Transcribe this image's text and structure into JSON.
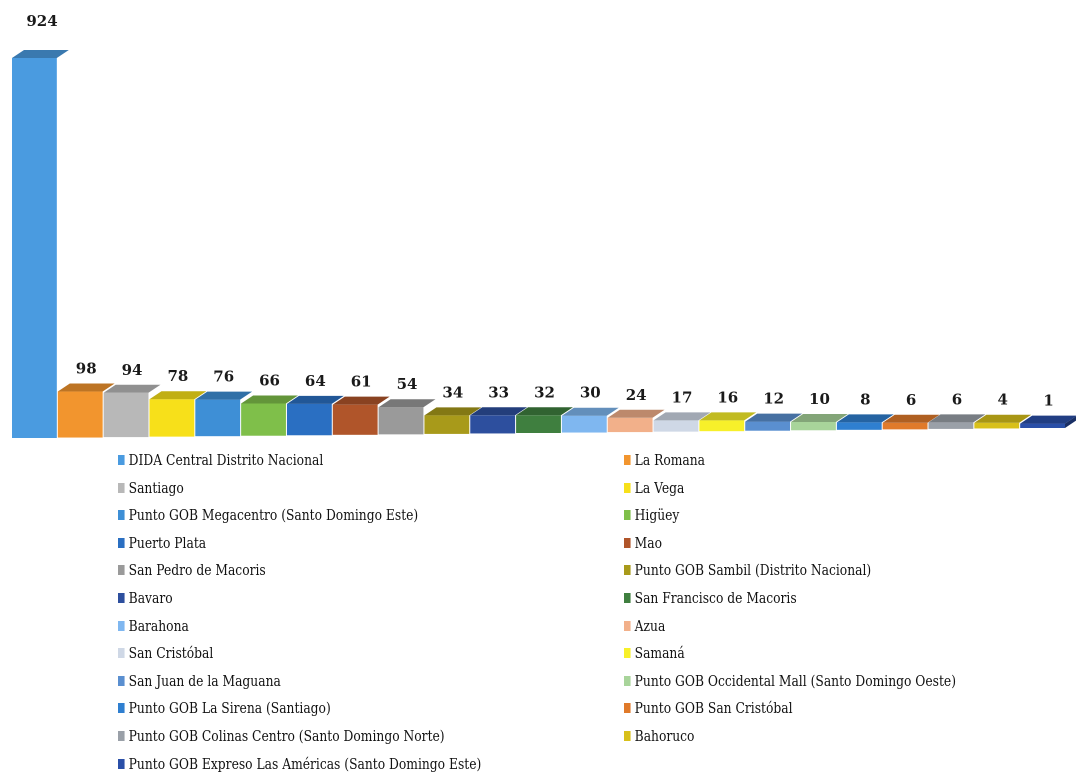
{
  "chart_data": {
    "type": "bar",
    "categories": [
      "DIDA Central Distrito Nacional",
      "La Romana",
      "Santiago",
      "La Vega",
      "Punto GOB Megacentro (Santo Domingo Este)",
      "Higüey",
      "Puerto Plata",
      "Mao",
      "San Pedro de Macoris",
      "Punto GOB Sambil (Distrito Nacional)",
      "Bavaro",
      "San Francisco de Macoris",
      "Barahona",
      "Azua",
      "San Cristóbal",
      "Samaná",
      "San Juan de la Maguana",
      "Punto GOB Occidental Mall (Santo Domingo Oeste)",
      "Punto GOB La Sirena (Santiago)",
      "Punto GOB San Cristóbal",
      "Punto GOB Colinas Centro (Santo Domingo Norte)",
      "Bahoruco",
      "Punto GOB Expreso Las Américas (Santo Domingo Este)"
    ],
    "values": [
      924,
      98,
      94,
      78,
      76,
      66,
      64,
      61,
      54,
      34,
      33,
      32,
      30,
      24,
      17,
      16,
      12,
      10,
      8,
      6,
      6,
      4,
      1
    ],
    "value_labels": [
      "924",
      "98",
      "94",
      "78",
      "76",
      "66",
      "64",
      "61",
      "54",
      "34",
      "33",
      "32",
      "30",
      "24",
      "17",
      "16",
      "12",
      "10",
      "8",
      "6",
      "6",
      "4",
      "1"
    ],
    "colors": [
      "#4a9be0",
      "#f2952e",
      "#b8b8b8",
      "#f7e01a",
      "#3e8fd6",
      "#7fbf4a",
      "#2a6fc2",
      "#b0552a",
      "#9a9a9a",
      "#a89a1a",
      "#2d4f9e",
      "#3f7f3f",
      "#7fb7f0",
      "#f2b08a",
      "#cfd8e6",
      "#f7f02a",
      "#5a8fd0",
      "#a8d49a",
      "#2f7fd0",
      "#e07a2a",
      "#9aa0a8",
      "#d8c01a",
      "#2a4fa8"
    ],
    "legend_position": "bottom",
    "grid": false
  }
}
